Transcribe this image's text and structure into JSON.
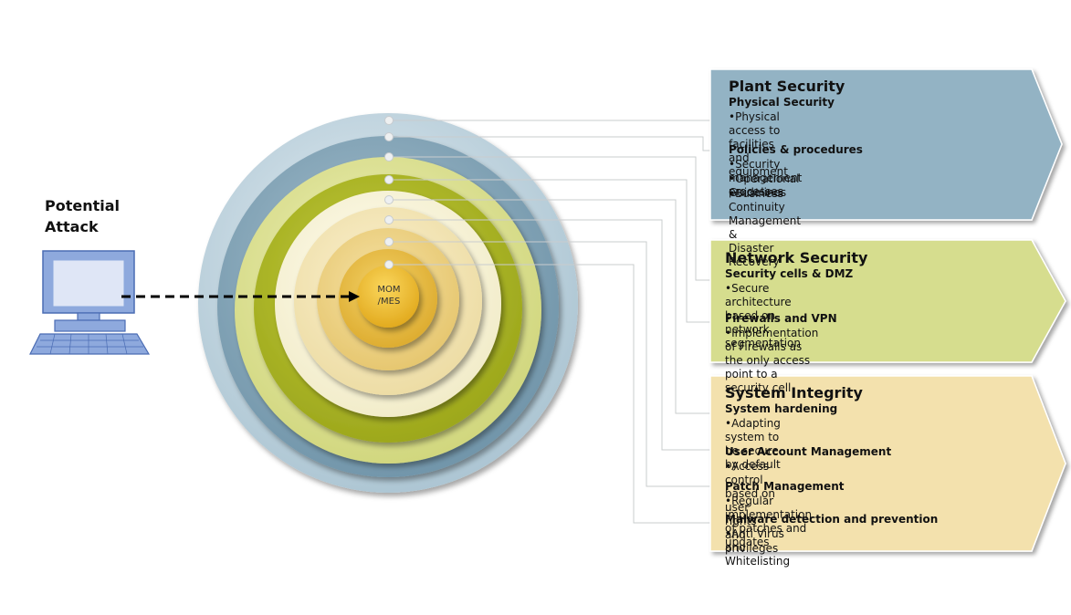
{
  "potential_attack": "Potential\nAttack",
  "core_label": "MOM\n/MES",
  "panels": [
    {
      "title": "Plant Security",
      "color": "#93b3c4",
      "groups": [
        {
          "heading": "Physical Security",
          "bullets": [
            "•Physical access to facilities and equipment"
          ]
        },
        {
          "heading": "Policies & procedures",
          "bullets": [
            "•Security management processes",
            "•Operational Guidelines",
            "•Business Continuity Management &\n Disaster Recovery"
          ]
        }
      ]
    },
    {
      "title": "Network Security",
      "color": "#d6dd8e",
      "groups": [
        {
          "heading": "Security cells & DMZ",
          "bullets": [
            "•Secure architecture based on network segmentation"
          ]
        },
        {
          "heading": "Firewalls and VPN",
          "bullets": [
            "•Implementation of Firewalls as the only access\n point to a security cell"
          ]
        }
      ]
    },
    {
      "title": "System Integrity",
      "color": "#f3e1ad",
      "groups": [
        {
          "heading": "System hardening",
          "bullets": [
            "•Adapting system to be secure by default"
          ]
        },
        {
          "heading": "User Account  Management",
          "bullets": [
            "•Access control based on user rights and privileges"
          ]
        },
        {
          "heading": "Patch Management",
          "bullets": [
            "•Regular implementation of patches and updates"
          ]
        },
        {
          "heading": "Malware detection and prevention",
          "bullets": [
            "•Anti Virus and Whitelisting"
          ]
        }
      ]
    }
  ]
}
